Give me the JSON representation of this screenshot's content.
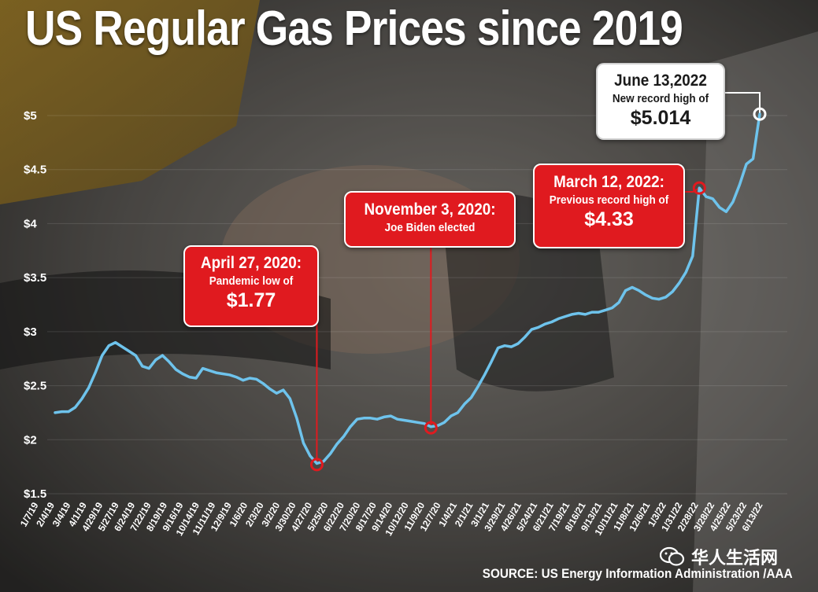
{
  "title": "US Regular Gas Prices since 2019",
  "source": "SOURCE: US Energy Information Administration /AAA",
  "watermark": "华人生活网",
  "colors": {
    "line": "#6ec3ec",
    "marker": "#e01a1f",
    "callout_red": "#e01a1f",
    "text": "#ffffff"
  },
  "annotations": [
    {
      "date": "April 27, 2020:",
      "desc": "Pandemic low of",
      "value": "$1.77"
    },
    {
      "date": "November 3, 2020:",
      "desc": "Joe Biden elected",
      "value": ""
    },
    {
      "date": "March 12, 2022:",
      "desc": "Previous record high of",
      "value": "$4.33"
    },
    {
      "date": "June 13,2022",
      "desc": "New record high of",
      "value": "$5.014"
    }
  ],
  "chart_data": {
    "type": "line",
    "title": "US Regular Gas Prices since 2019",
    "xlabel": "",
    "ylabel": "",
    "ylim": [
      1.5,
      5
    ],
    "y_ticks": [
      "$1.5",
      "$2",
      "$2.5",
      "$3",
      "$3.5",
      "$4",
      "$4.5",
      "$5"
    ],
    "y_tick_values": [
      1.5,
      2,
      2.5,
      3,
      3.5,
      4,
      4.5,
      5
    ],
    "x_tick_labels": [
      "1/7/19",
      "2/4/19",
      "3/4/19",
      "4/1/19",
      "4/29/19",
      "5/27/19",
      "6/24/19",
      "7/22/19",
      "8/19/19",
      "9/16/19",
      "10/14/19",
      "11/11/19",
      "12/9/19",
      "1/6/20",
      "2/3/20",
      "3/2/20",
      "3/30/20",
      "4/27/20",
      "5/25/20",
      "6/22/20",
      "7/20/20",
      "8/17/20",
      "9/14/20",
      "10/12/20",
      "11/9/20",
      "12/7/20",
      "1/4/21",
      "2/1/21",
      "3/1/21",
      "3/29/21",
      "4/26/21",
      "5/24/21",
      "6/21/21",
      "7/19/21",
      "8/16/21",
      "9/13/21",
      "10/11/21",
      "11/8/21",
      "12/6/21",
      "1/3/22",
      "1/31/22",
      "2/28/22",
      "3/28/22",
      "4/25/22",
      "5/23/22",
      "6/13/22"
    ],
    "grid": true,
    "legend": "none",
    "series": [
      {
        "values": [
          2.25,
          2.26,
          2.26,
          2.3,
          2.38,
          2.48,
          2.62,
          2.78,
          2.87,
          2.9,
          2.86,
          2.82,
          2.78,
          2.68,
          2.66,
          2.74,
          2.78,
          2.72,
          2.65,
          2.61,
          2.58,
          2.57,
          2.66,
          2.64,
          2.62,
          2.61,
          2.6,
          2.58,
          2.55,
          2.57,
          2.56,
          2.52,
          2.47,
          2.43,
          2.46,
          2.38,
          2.2,
          1.97,
          1.85,
          1.78,
          1.8,
          1.87,
          1.96,
          2.03,
          2.12,
          2.19,
          2.2,
          2.2,
          2.19,
          2.21,
          2.22,
          2.19,
          2.18,
          2.17,
          2.16,
          2.15,
          2.12,
          2.13,
          2.16,
          2.22,
          2.25,
          2.33,
          2.39,
          2.49,
          2.6,
          2.72,
          2.85,
          2.87,
          2.86,
          2.89,
          2.95,
          3.02,
          3.04,
          3.07,
          3.09,
          3.12,
          3.14,
          3.16,
          3.17,
          3.16,
          3.18,
          3.18,
          3.2,
          3.22,
          3.27,
          3.38,
          3.41,
          3.38,
          3.34,
          3.31,
          3.3,
          3.32,
          3.37,
          3.45,
          3.55,
          3.7,
          4.33,
          4.25,
          4.23,
          4.15,
          4.11,
          4.2,
          4.36,
          4.55,
          4.6,
          5.014
        ]
      }
    ],
    "markers": [
      {
        "date": "4/27/20",
        "value": 1.77
      },
      {
        "date": "11/3/20",
        "value": 2.11
      },
      {
        "date": "3/12/22",
        "value": 4.33
      },
      {
        "date": "6/13/22",
        "value": 5.014
      }
    ]
  }
}
